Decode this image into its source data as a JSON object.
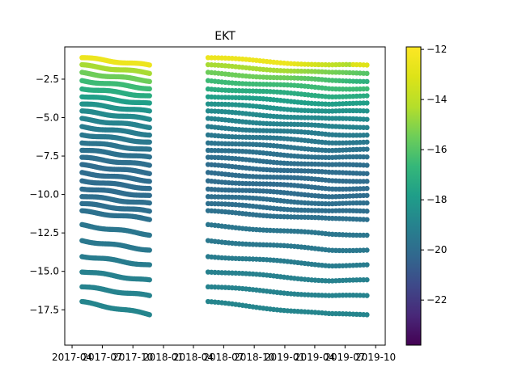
{
  "chart_data": {
    "type": "scatter",
    "title": "EKT",
    "xlabel": "",
    "ylabel": "",
    "x_is_date": true,
    "xlim": [
      "2017-03-10",
      "2019-10-30"
    ],
    "ylim": [
      -19.8,
      -0.4
    ],
    "x_ticks": [
      "2017-04",
      "2017-07",
      "2017-10",
      "2018-01",
      "2018-04",
      "2018-07",
      "2018-10",
      "2019-01",
      "2019-04",
      "2019-07",
      "2019-10"
    ],
    "y_ticks": [
      -2.5,
      -5.0,
      -7.5,
      -10.0,
      -12.5,
      -15.0,
      -17.5
    ],
    "colorbar": {
      "colormap": "viridis",
      "range": [
        -23.8,
        -11.9
      ],
      "ticks": [
        -12,
        -14,
        -16,
        -18,
        -20,
        -22
      ]
    },
    "grid": false,
    "segments": [
      {
        "start": "2017-05-01",
        "end": "2017-11-20"
      },
      {
        "start": "2018-05-15",
        "end": "2019-09-05"
      }
    ],
    "series": [
      {
        "depth_start": -1.1,
        "depth_end": -1.6,
        "color_value": -12.5
      },
      {
        "depth_start": -1.6,
        "depth_end": -2.1,
        "color_value": -14.5
      },
      {
        "depth_start": -2.1,
        "depth_end": -2.6,
        "color_value": -15.5
      },
      {
        "depth_start": -2.6,
        "depth_end": -3.1,
        "color_value": -16.5
      },
      {
        "depth_start": -3.1,
        "depth_end": -3.6,
        "color_value": -17.2
      },
      {
        "depth_start": -3.6,
        "depth_end": -4.1,
        "color_value": -17.8
      },
      {
        "depth_start": -4.1,
        "depth_end": -4.6,
        "color_value": -18.3
      },
      {
        "depth_start": -4.6,
        "depth_end": -5.1,
        "color_value": -18.7
      },
      {
        "depth_start": -5.1,
        "depth_end": -5.6,
        "color_value": -19.0
      },
      {
        "depth_start": -5.6,
        "depth_end": -6.1,
        "color_value": -19.3
      },
      {
        "depth_start": -6.1,
        "depth_end": -6.6,
        "color_value": -19.5
      },
      {
        "depth_start": -6.6,
        "depth_end": -7.1,
        "color_value": -19.7
      },
      {
        "depth_start": -7.1,
        "depth_end": -7.6,
        "color_value": -19.8
      },
      {
        "depth_start": -7.6,
        "depth_end": -8.1,
        "color_value": -19.9
      },
      {
        "depth_start": -8.1,
        "depth_end": -8.6,
        "color_value": -20.0
      },
      {
        "depth_start": -8.6,
        "depth_end": -9.1,
        "color_value": -20.0
      },
      {
        "depth_start": -9.1,
        "depth_end": -9.6,
        "color_value": -20.0
      },
      {
        "depth_start": -9.6,
        "depth_end": -10.1,
        "color_value": -20.0
      },
      {
        "depth_start": -10.1,
        "depth_end": -10.6,
        "color_value": -19.9
      },
      {
        "depth_start": -10.6,
        "depth_end": -11.1,
        "color_value": -19.9
      },
      {
        "depth_start": -11.1,
        "depth_end": -11.6,
        "color_value": -19.8
      },
      {
        "depth_start": -12.0,
        "depth_end": -12.6,
        "color_value": -19.6
      },
      {
        "depth_start": -13.0,
        "depth_end": -13.6,
        "color_value": -19.5
      },
      {
        "depth_start": -14.0,
        "depth_end": -14.6,
        "color_value": -19.3
      },
      {
        "depth_start": -15.0,
        "depth_end": -15.6,
        "color_value": -19.1
      },
      {
        "depth_start": -16.0,
        "depth_end": -16.6,
        "color_value": -19.0
      },
      {
        "depth_start": -17.0,
        "depth_end": -17.8,
        "color_value": -18.9
      }
    ]
  }
}
